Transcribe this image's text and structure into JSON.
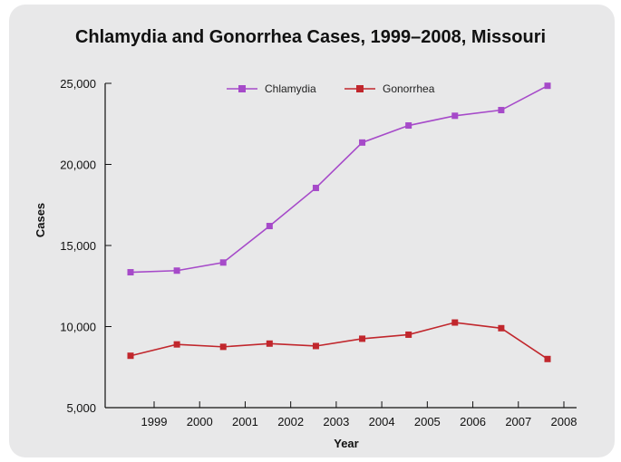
{
  "chart_data": {
    "type": "line",
    "title": "Chlamydia and Gonorrhea Cases, 1999–2008, Missouri",
    "xlabel": "Year",
    "ylabel": "Cases",
    "categories": [
      "1999",
      "2000",
      "2001",
      "2002",
      "2003",
      "2004",
      "2005",
      "2006",
      "2007",
      "2008"
    ],
    "y_ticks": [
      "5,000",
      "10,000",
      "15,000",
      "20,000",
      "25,000"
    ],
    "ylim": [
      5000,
      25000
    ],
    "grid": false,
    "legend_position": "top-center",
    "series": [
      {
        "name": "Chlamydia",
        "color": "#a64ac9",
        "values": [
          13350,
          13450,
          13950,
          16200,
          18550,
          21350,
          22400,
          23000,
          23350,
          24850
        ]
      },
      {
        "name": "Gonorrhea",
        "color": "#c1272d",
        "values": [
          8200,
          8900,
          8750,
          8950,
          8800,
          9250,
          9500,
          10250,
          9900,
          8000
        ]
      }
    ]
  }
}
